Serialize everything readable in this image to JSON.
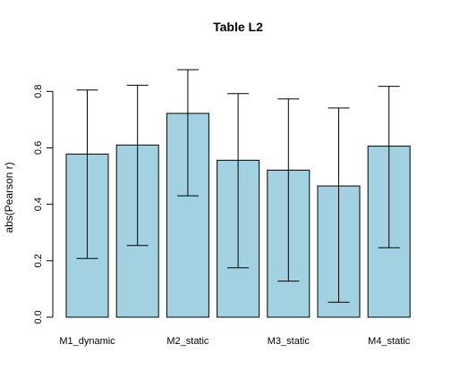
{
  "chart_data": {
    "type": "bar",
    "title": "Table L2",
    "xlabel": "",
    "ylabel": "abs(Pearson r)",
    "ylim": [
      0,
      0.88
    ],
    "yticks": [
      "0.0",
      "0.2",
      "0.4",
      "0.6",
      "0.8"
    ],
    "grid": false,
    "bar_color": "#a2d2e2",
    "categories": [
      "M1_dynamic",
      "",
      "M2_static",
      "",
      "M3_static",
      "",
      "M4_static"
    ],
    "values": [
      0.578,
      0.61,
      0.722,
      0.556,
      0.521,
      0.465,
      0.606
    ],
    "error_low": [
      0.208,
      0.254,
      0.43,
      0.175,
      0.128,
      0.053,
      0.246
    ],
    "error_high": [
      0.805,
      0.822,
      0.877,
      0.792,
      0.773,
      0.741,
      0.818
    ]
  }
}
